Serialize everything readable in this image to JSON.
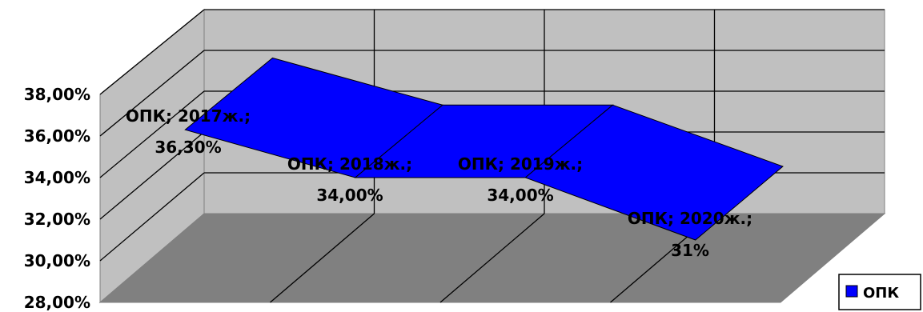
{
  "chart_data": {
    "type": "line",
    "style": "3d-ribbon",
    "title": "",
    "xlabel": "",
    "ylabel": "",
    "categories": [
      "2017ж.",
      "2018ж.",
      "2019ж.",
      "2020ж."
    ],
    "series": [
      {
        "name": "ОПК",
        "values": [
          36.3,
          34.0,
          34.0,
          31.0
        ],
        "color": "#0000FF",
        "data_labels": [
          "ОПК; 2017ж.; 36,30%",
          "ОПК; 2018ж.; 34,00%",
          "ОПК; 2019ж.; 34,00%",
          "ОПК; 2020ж.; 31%"
        ]
      }
    ],
    "ylim": [
      28,
      38
    ],
    "y_ticks": [
      28,
      30,
      32,
      34,
      36,
      38
    ],
    "y_tick_labels": [
      "28,00%",
      "30,00%",
      "32,00%",
      "34,00%",
      "36,00%",
      "38,00%"
    ],
    "grid": true,
    "legend": {
      "position": "bottom-right",
      "entries": [
        "ОПК"
      ]
    },
    "wall_color": "#C0C0C0",
    "floor_color": "#808080"
  }
}
